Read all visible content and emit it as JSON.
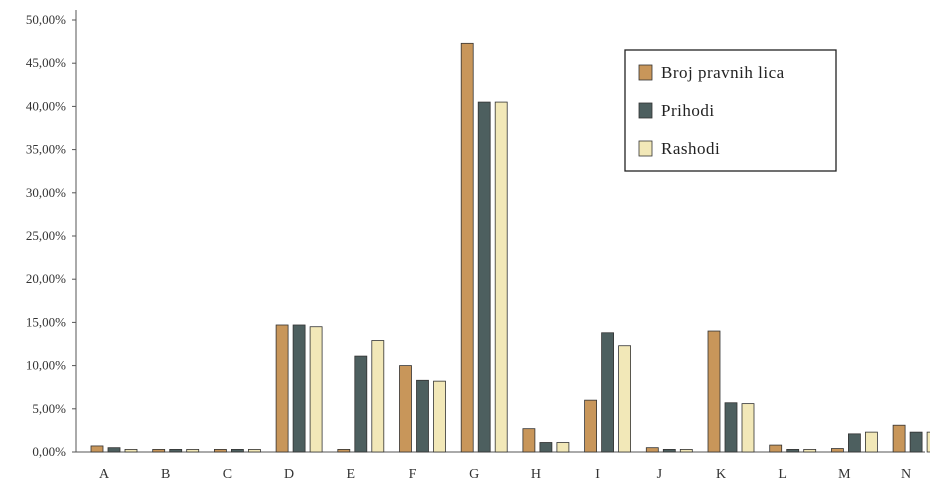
{
  "chart_data": {
    "type": "bar",
    "categories": [
      "A",
      "B",
      "C",
      "D",
      "E",
      "F",
      "G",
      "H",
      "I",
      "J",
      "K",
      "L",
      "M",
      "N"
    ],
    "series": [
      {
        "name": "Broj pravnih lica",
        "color": "#c8965a",
        "values": [
          0.7,
          0.3,
          0.3,
          14.7,
          0.3,
          10.0,
          47.3,
          2.7,
          6.0,
          0.5,
          14.0,
          0.8,
          0.4,
          3.1
        ]
      },
      {
        "name": "Prihodi",
        "color": "#4d5f5f",
        "values": [
          0.5,
          0.3,
          0.3,
          14.7,
          11.1,
          8.3,
          40.5,
          1.1,
          13.8,
          0.3,
          5.7,
          0.3,
          2.1,
          2.3
        ]
      },
      {
        "name": "Rashodi",
        "color": "#f2e8b8",
        "values": [
          0.3,
          0.3,
          0.3,
          14.5,
          12.9,
          8.2,
          40.5,
          1.1,
          12.3,
          0.3,
          5.6,
          0.3,
          2.3,
          2.3
        ]
      }
    ],
    "y_ticks": [
      "0,00%",
      "5,00%",
      "10,00%",
      "15,00%",
      "20,00%",
      "25,00%",
      "30,00%",
      "35,00%",
      "40,00%",
      "45,00%",
      "50,00%"
    ],
    "ylim": [
      0,
      50
    ],
    "grid": false,
    "legend_position": "top-right",
    "title": "",
    "xlabel": "",
    "ylabel": ""
  }
}
